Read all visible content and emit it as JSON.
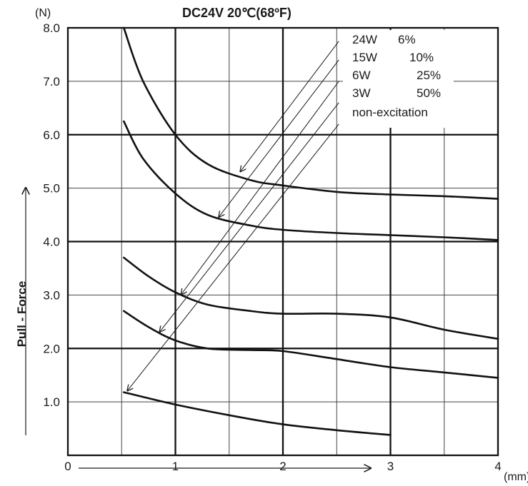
{
  "chart_data": {
    "type": "line",
    "title": "DC24V  20℃(68ºF)",
    "ylabel": "Pull - Force",
    "y_unit": "(N)",
    "x_unit": "(mm)",
    "xlim": [
      0,
      4
    ],
    "ylim": [
      0,
      8
    ],
    "x_ticks": [
      "0",
      "1",
      "2",
      "3",
      "4"
    ],
    "y_ticks": [
      "1.0",
      "2.0",
      "3.0",
      "4.0",
      "5.0",
      "6.0",
      "7.0",
      "8.0"
    ],
    "grid": true,
    "legend_position": "top-right",
    "series": [
      {
        "name": "24W 6%",
        "label": "24W",
        "duty": "6%",
        "x": [
          0.52,
          0.7,
          1.0,
          1.3,
          1.7,
          2.0,
          2.5,
          3.0,
          3.5,
          4.0
        ],
        "y": [
          8.0,
          7.0,
          6.0,
          5.45,
          5.15,
          5.05,
          4.93,
          4.88,
          4.85,
          4.8
        ]
      },
      {
        "name": "15W 10%",
        "label": "15W",
        "duty": "10%",
        "x": [
          0.52,
          0.7,
          1.0,
          1.3,
          1.7,
          2.0,
          2.5,
          3.0,
          3.5,
          4.0
        ],
        "y": [
          6.25,
          5.55,
          4.9,
          4.5,
          4.3,
          4.22,
          4.16,
          4.12,
          4.08,
          4.03
        ]
      },
      {
        "name": "6W 25%",
        "label": "6W",
        "duty": "25%",
        "x": [
          0.52,
          0.75,
          1.0,
          1.3,
          1.7,
          2.0,
          2.5,
          3.0,
          3.5,
          4.0
        ],
        "y": [
          3.7,
          3.35,
          3.05,
          2.82,
          2.7,
          2.65,
          2.65,
          2.58,
          2.35,
          2.18
        ]
      },
      {
        "name": "3W 50%",
        "label": "3W",
        "duty": "50%",
        "x": [
          0.52,
          0.75,
          1.0,
          1.3,
          1.7,
          2.0,
          2.5,
          3.0,
          3.5,
          4.0
        ],
        "y": [
          2.7,
          2.4,
          2.15,
          2.0,
          1.97,
          1.95,
          1.8,
          1.65,
          1.55,
          1.45
        ]
      },
      {
        "name": "non-excitation",
        "label": "non-excitation",
        "duty": "",
        "x": [
          0.52,
          1.0,
          1.5,
          2.0,
          2.5,
          3.0
        ],
        "y": [
          1.18,
          0.95,
          0.75,
          0.58,
          0.47,
          0.38
        ]
      }
    ],
    "leader_lines": [
      {
        "from": [
          2.52,
          7.75
        ],
        "to": [
          1.6,
          5.3
        ]
      },
      {
        "from": [
          2.52,
          7.4
        ],
        "to": [
          1.4,
          4.45
        ]
      },
      {
        "from": [
          2.52,
          7.0
        ],
        "to": [
          1.05,
          3.0
        ]
      },
      {
        "from": [
          2.52,
          6.6
        ],
        "to": [
          0.85,
          2.3
        ]
      },
      {
        "from": [
          2.52,
          6.2
        ],
        "to": [
          0.55,
          1.2
        ]
      }
    ]
  }
}
